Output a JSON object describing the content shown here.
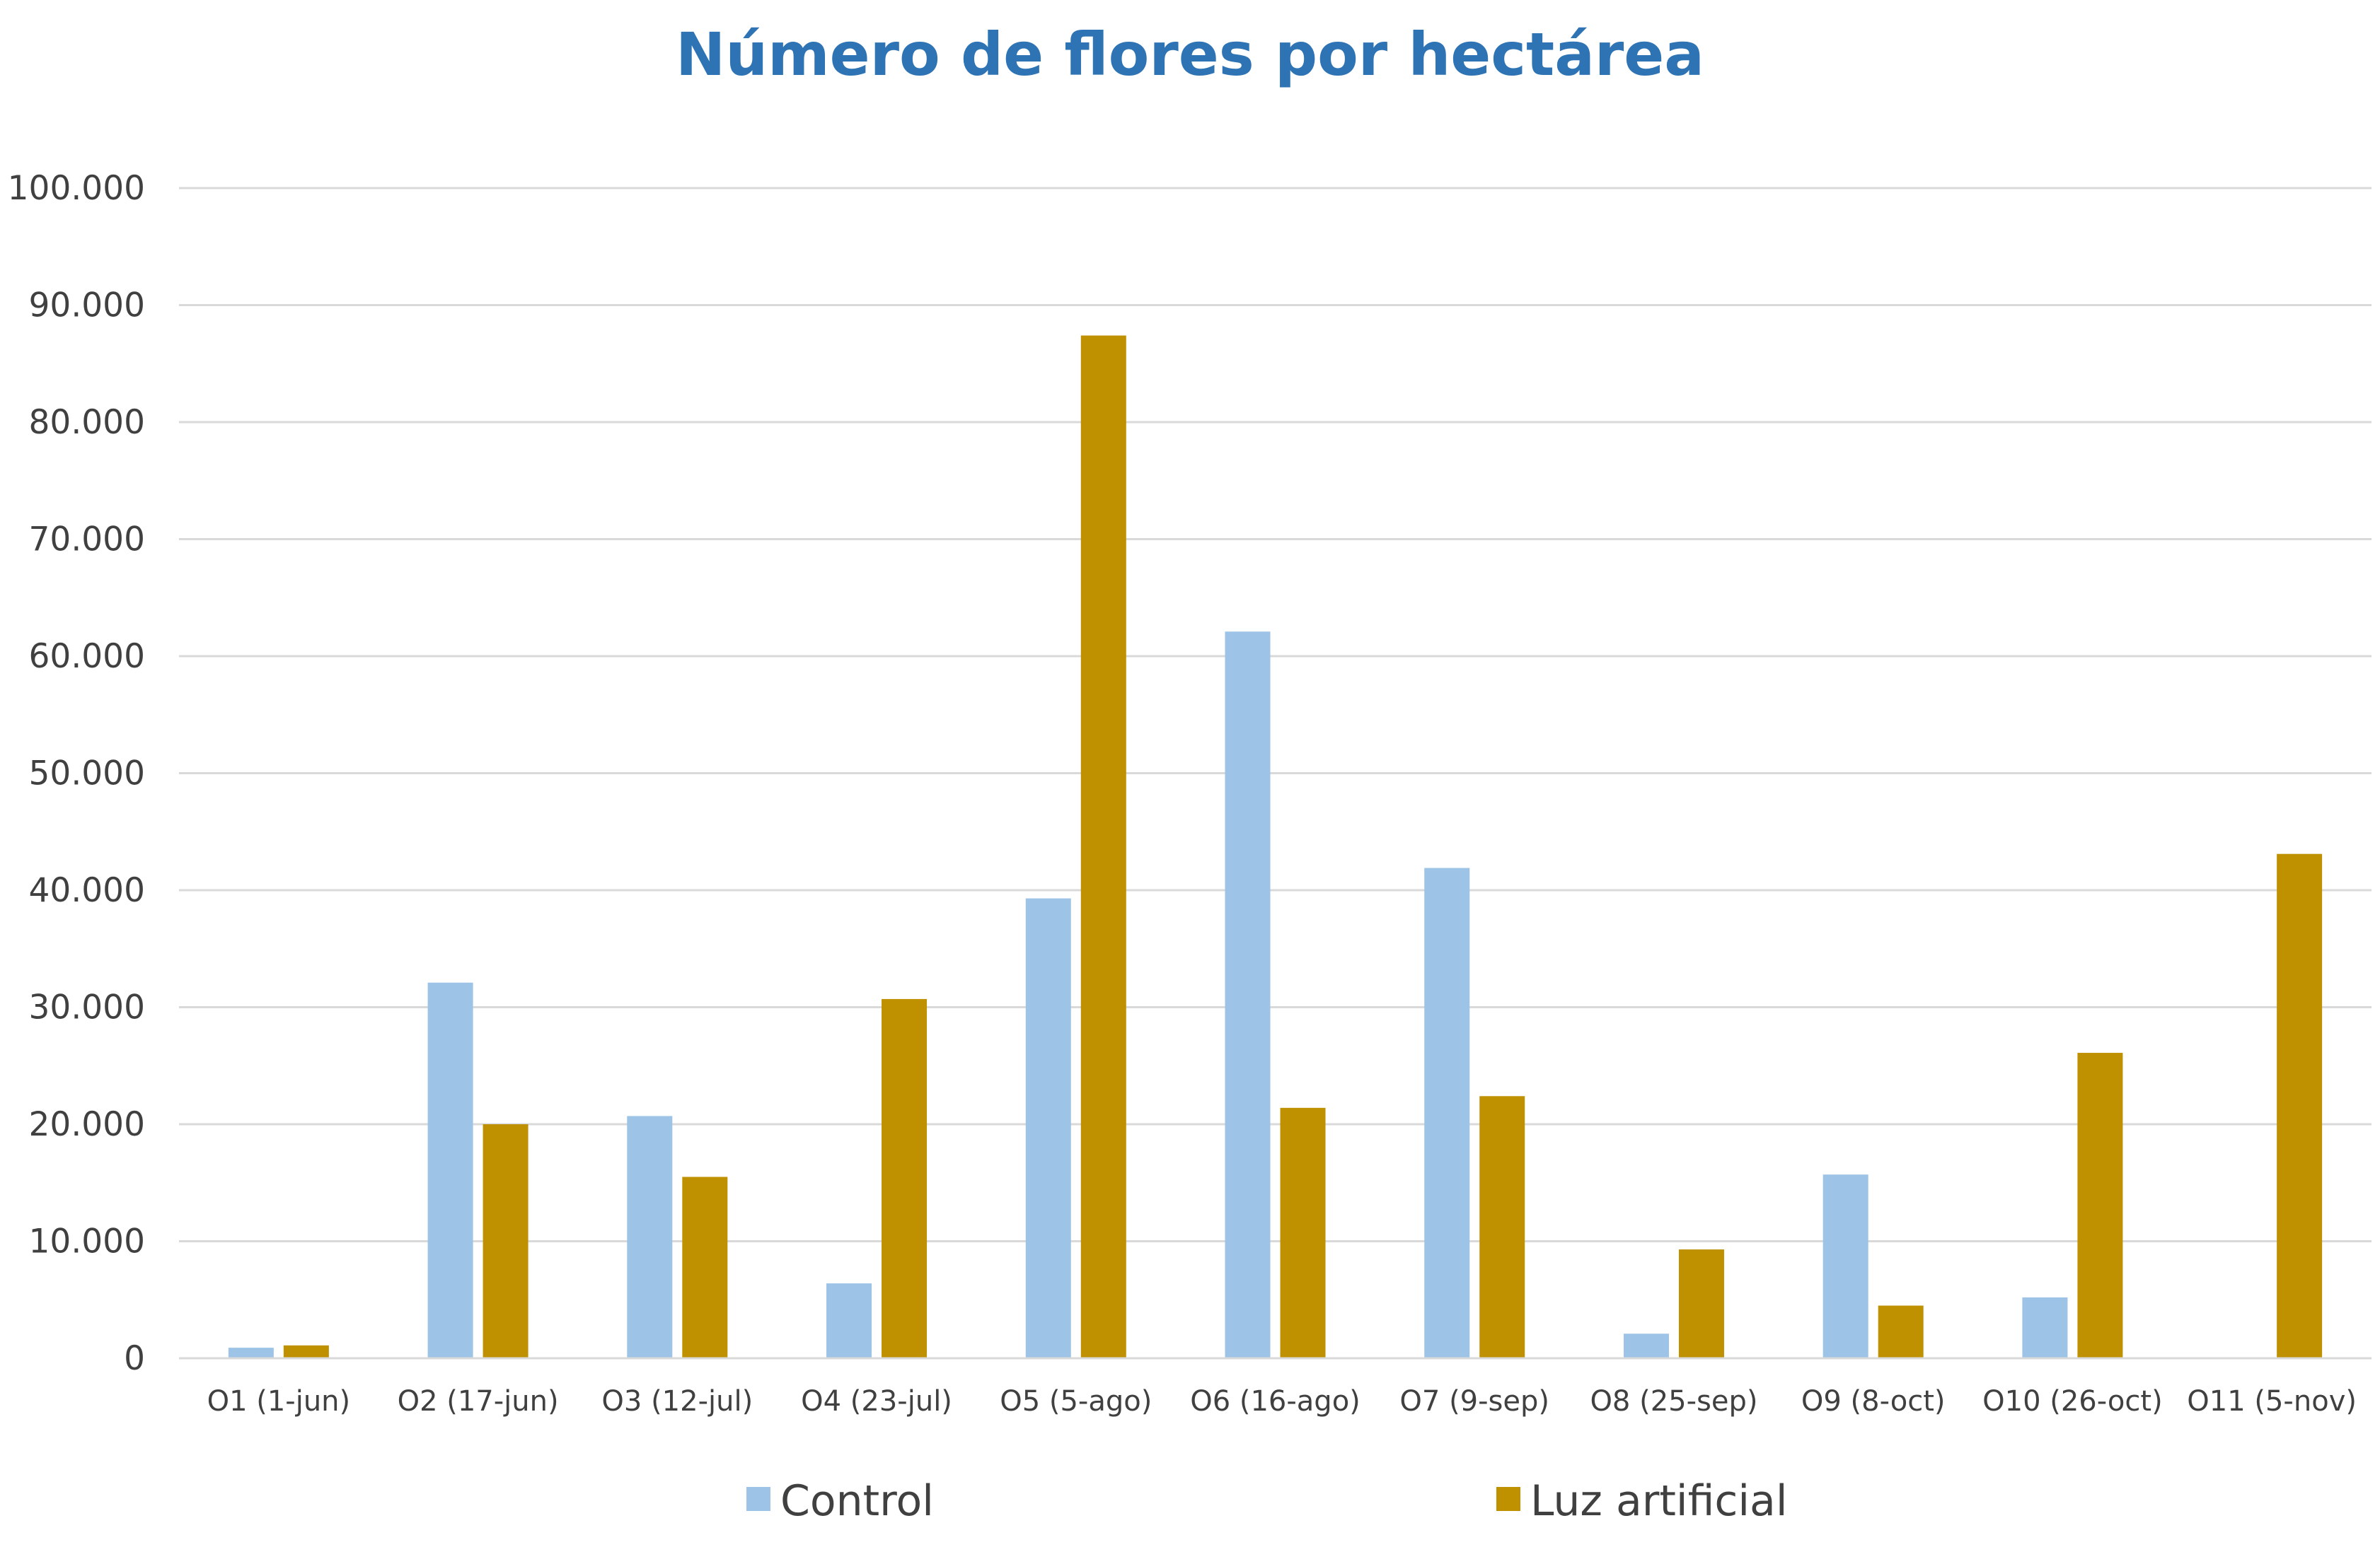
{
  "chart_data": {
    "type": "bar",
    "title": "Número de flores por hectárea",
    "xlabel": "",
    "ylabel": "",
    "ylim": [
      0,
      100000
    ],
    "ytick_values": [
      0,
      10000,
      20000,
      30000,
      40000,
      50000,
      60000,
      70000,
      80000,
      90000,
      100000
    ],
    "ytick_labels": [
      "0",
      "10.000",
      "20.000",
      "30.000",
      "40.000",
      "50.000",
      "60.000",
      "70.000",
      "80.000",
      "90.000",
      "100.000"
    ],
    "grid": true,
    "legend_position": "bottom",
    "categories": [
      "O1 (1-jun)",
      "O2 (17-jun)",
      "O3 (12-jul)",
      "O4 (23-jul)",
      "O5 (5-ago)",
      "O6 (16-ago)",
      "O7 (9-sep)",
      "O8 (25-sep)",
      "O9 (8-oct)",
      "O10 (26-oct)",
      "O11 (5-nov)"
    ],
    "series": [
      {
        "name": "Control",
        "color": "#9dc3e6",
        "values": [
          900,
          32100,
          20700,
          6400,
          39300,
          62100,
          41900,
          2100,
          15700,
          5200,
          0
        ]
      },
      {
        "name": "Luz artificial",
        "color": "#bf9000",
        "values": [
          1100,
          20000,
          15500,
          30700,
          87400,
          21400,
          22400,
          9300,
          4500,
          26100,
          43100
        ]
      }
    ]
  }
}
